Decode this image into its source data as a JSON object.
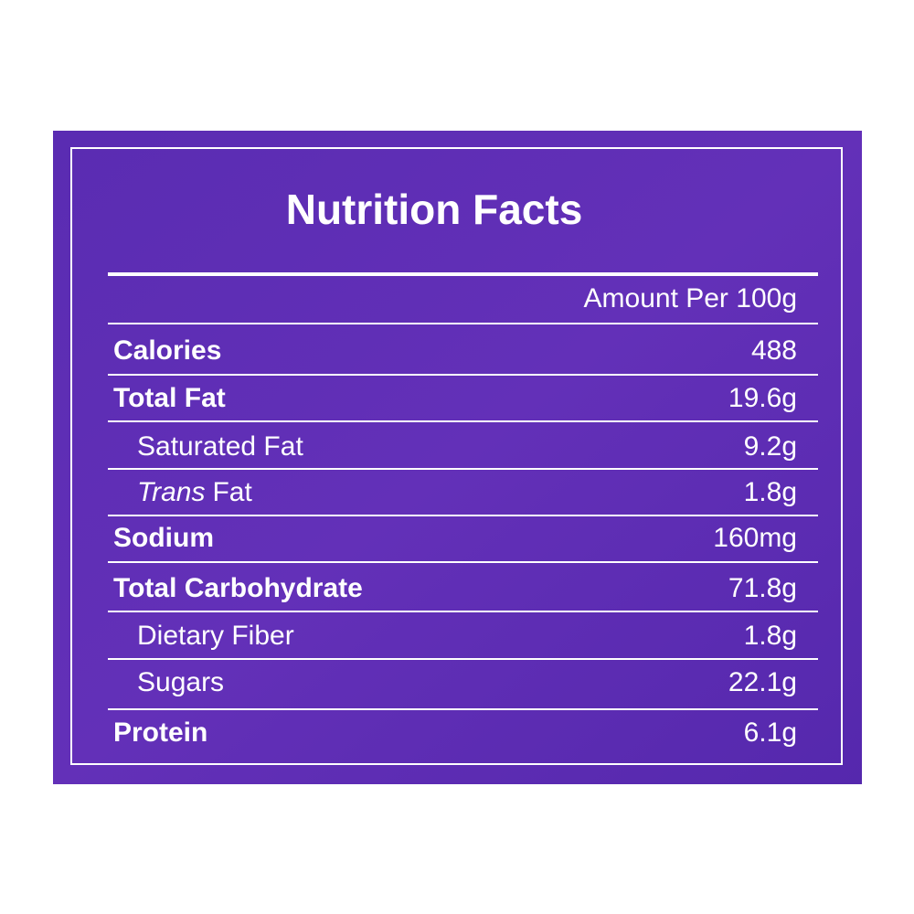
{
  "title": "Nutrition Facts",
  "header": "Amount Per 100g",
  "rows": [
    {
      "name": "Calories",
      "value": "488",
      "bold": true,
      "indent": false
    },
    {
      "name": "Total Fat",
      "value": "19.6g",
      "bold": true,
      "indent": false
    },
    {
      "name": "Saturated Fat",
      "value": "9.2g",
      "bold": false,
      "indent": true
    },
    {
      "name": {
        "italic": "Trans",
        "plain": "Fat"
      },
      "value": "1.8g",
      "bold": false,
      "indent": true
    },
    {
      "name": "Sodium",
      "value": "160mg",
      "bold": true,
      "indent": false
    },
    {
      "name": "Total Carbohydrate",
      "value": "71.8g",
      "bold": true,
      "indent": false
    },
    {
      "name": "Dietary Fiber",
      "value": "1.8g",
      "bold": false,
      "indent": true
    },
    {
      "name": "Sugars",
      "value": "22.1g",
      "bold": false,
      "indent": true
    },
    {
      "name": "Protein",
      "value": "6.1g",
      "bold": true,
      "indent": false
    }
  ]
}
